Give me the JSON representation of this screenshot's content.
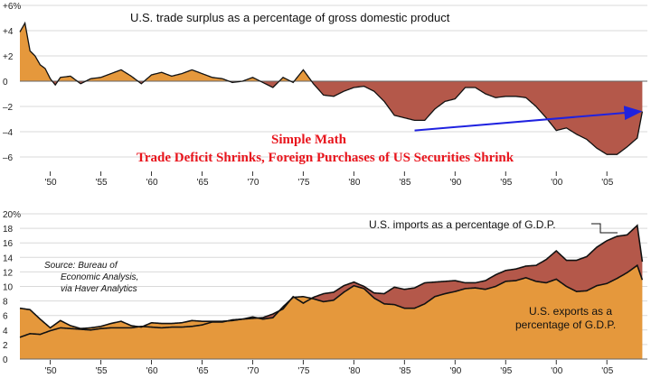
{
  "colors": {
    "positive_fill": "#e5983c",
    "negative_fill": "#b4584a",
    "exports_fill": "#e5983c",
    "gap_fill": "#b4584a",
    "line": "#111111",
    "arrow": "#1f22e0",
    "annotation": "#e8141c",
    "grid": "#d9d9d9"
  },
  "chart_data": [
    {
      "type": "area",
      "title": "U.S. trade surplus as a percentage of gross domestic product",
      "ylim": [
        -7,
        6
      ],
      "y_ticks": [
        {
          "value": 6,
          "label": "+6%"
        },
        {
          "value": 4,
          "label": "+4"
        },
        {
          "value": 2,
          "label": "+2"
        },
        {
          "value": 0,
          "label": "0"
        },
        {
          "value": -2,
          "label": "–2"
        },
        {
          "value": -4,
          "label": "–4"
        },
        {
          "value": -6,
          "label": "–6"
        }
      ],
      "x_ticks": [
        {
          "value": 1950,
          "label": "'50"
        },
        {
          "value": 1955,
          "label": "'55"
        },
        {
          "value": 1960,
          "label": "'60"
        },
        {
          "value": 1965,
          "label": "'65"
        },
        {
          "value": 1970,
          "label": "'70"
        },
        {
          "value": 1975,
          "label": "'75"
        },
        {
          "value": 1980,
          "label": "'80"
        },
        {
          "value": 1985,
          "label": "'85"
        },
        {
          "value": 1990,
          "label": "'90"
        },
        {
          "value": 1995,
          "label": "'95"
        },
        {
          "value": 2000,
          "label": "'00"
        },
        {
          "value": 2005,
          "label": "'05"
        }
      ],
      "xlim": [
        1947,
        2009
      ],
      "series": [
        {
          "name": "Trade surplus (% of GDP)",
          "x": [
            1947,
            1947.5,
            1948,
            1948.5,
            1949,
            1949.5,
            1950,
            1950.5,
            1951,
            1952,
            1953,
            1954,
            1955,
            1956,
            1957,
            1958,
            1959,
            1960,
            1961,
            1962,
            1963,
            1964,
            1965,
            1966,
            1967,
            1968,
            1969,
            1970,
            1971,
            1972,
            1973,
            1974,
            1975,
            1976,
            1977,
            1978,
            1979,
            1980,
            1981,
            1982,
            1983,
            1984,
            1985,
            1986,
            1987,
            1988,
            1989,
            1990,
            1991,
            1992,
            1993,
            1994,
            1995,
            1996,
            1997,
            1998,
            1999,
            2000,
            2001,
            2002,
            2003,
            2004,
            2005,
            2006,
            2007,
            2008,
            2008.5
          ],
          "values": [
            3.9,
            4.6,
            2.4,
            2.0,
            1.3,
            1.0,
            0.2,
            -0.3,
            0.3,
            0.4,
            -0.2,
            0.2,
            0.3,
            0.6,
            0.9,
            0.4,
            -0.2,
            0.5,
            0.7,
            0.4,
            0.6,
            0.9,
            0.6,
            0.3,
            0.2,
            -0.1,
            0.0,
            0.3,
            -0.1,
            -0.5,
            0.3,
            -0.1,
            0.9,
            -0.2,
            -1.1,
            -1.2,
            -0.8,
            -0.5,
            -0.4,
            -0.8,
            -1.6,
            -2.7,
            -2.9,
            -3.1,
            -3.1,
            -2.2,
            -1.6,
            -1.4,
            -0.5,
            -0.5,
            -1.0,
            -1.3,
            -1.2,
            -1.2,
            -1.3,
            -2.0,
            -2.9,
            -3.9,
            -3.7,
            -4.2,
            -4.6,
            -5.3,
            -5.8,
            -5.8,
            -5.2,
            -4.5,
            -2.4
          ]
        }
      ],
      "annotation": {
        "line1": "Simple Math",
        "line2": "Trade Deficit Shrinks, Foreign Purchases of US Securities Shrink",
        "arrow_from": [
          1986,
          -3.9
        ],
        "arrow_to": [
          2008.5,
          -2.4
        ]
      }
    },
    {
      "type": "area",
      "ylim": [
        0,
        20
      ],
      "y_ticks": [
        {
          "value": 20,
          "label": "20%"
        },
        {
          "value": 18,
          "label": "18"
        },
        {
          "value": 16,
          "label": "16"
        },
        {
          "value": 14,
          "label": "14"
        },
        {
          "value": 12,
          "label": "12"
        },
        {
          "value": 10,
          "label": "10"
        },
        {
          "value": 8,
          "label": "8"
        },
        {
          "value": 6,
          "label": "6"
        },
        {
          "value": 4,
          "label": "4"
        },
        {
          "value": 2,
          "label": "2"
        },
        {
          "value": 0,
          "label": "0"
        }
      ],
      "x_ticks": [
        {
          "value": 1950,
          "label": "'50"
        },
        {
          "value": 1955,
          "label": "'55"
        },
        {
          "value": 1960,
          "label": "'60"
        },
        {
          "value": 1965,
          "label": "'65"
        },
        {
          "value": 1970,
          "label": "'70"
        },
        {
          "value": 1975,
          "label": "'75"
        },
        {
          "value": 1980,
          "label": "'80"
        },
        {
          "value": 1985,
          "label": "'85"
        },
        {
          "value": 1990,
          "label": "'90"
        },
        {
          "value": 1995,
          "label": "'95"
        },
        {
          "value": 2000,
          "label": "'00"
        },
        {
          "value": 2005,
          "label": "'05"
        }
      ],
      "xlim": [
        1947,
        2009
      ],
      "series": [
        {
          "name": "U.S. imports as a percentage of G.D.P.",
          "x": [
            1947,
            1948,
            1949,
            1950,
            1951,
            1952,
            1953,
            1954,
            1955,
            1956,
            1957,
            1958,
            1959,
            1960,
            1961,
            1962,
            1963,
            1964,
            1965,
            1966,
            1967,
            1968,
            1969,
            1970,
            1971,
            1972,
            1973,
            1974,
            1975,
            1976,
            1977,
            1978,
            1979,
            1980,
            1981,
            1982,
            1983,
            1984,
            1985,
            1986,
            1987,
            1988,
            1989,
            1990,
            1991,
            1992,
            1993,
            1994,
            1995,
            1996,
            1997,
            1998,
            1999,
            2000,
            2001,
            2002,
            2003,
            2004,
            2005,
            2006,
            2007,
            2008,
            2008.5
          ],
          "values": [
            3.0,
            3.5,
            3.4,
            3.9,
            4.3,
            4.2,
            4.1,
            4.0,
            4.2,
            4.3,
            4.3,
            4.3,
            4.5,
            4.4,
            4.3,
            4.4,
            4.4,
            4.5,
            4.7,
            5.1,
            5.1,
            5.4,
            5.5,
            5.6,
            5.7,
            6.2,
            6.9,
            8.6,
            7.7,
            8.5,
            9.0,
            9.2,
            10.1,
            10.6,
            10.0,
            9.1,
            9.0,
            9.9,
            9.6,
            9.8,
            10.5,
            10.6,
            10.7,
            10.8,
            10.5,
            10.5,
            10.8,
            11.6,
            12.2,
            12.4,
            12.8,
            12.9,
            13.7,
            14.9,
            13.6,
            13.6,
            14.1,
            15.4,
            16.3,
            16.9,
            17.1,
            18.4,
            13.4
          ]
        },
        {
          "name": "U.S. exports as a percentage of G.D.P.",
          "x": [
            1947,
            1948,
            1949,
            1950,
            1951,
            1952,
            1953,
            1954,
            1955,
            1956,
            1957,
            1958,
            1959,
            1960,
            1961,
            1962,
            1963,
            1964,
            1965,
            1966,
            1967,
            1968,
            1969,
            1970,
            1971,
            1972,
            1973,
            1974,
            1975,
            1976,
            1977,
            1978,
            1979,
            1980,
            1981,
            1982,
            1983,
            1984,
            1985,
            1986,
            1987,
            1988,
            1989,
            1990,
            1991,
            1992,
            1993,
            1994,
            1995,
            1996,
            1997,
            1998,
            1999,
            2000,
            2001,
            2002,
            2003,
            2004,
            2005,
            2006,
            2007,
            2008,
            2008.5
          ],
          "values": [
            7.0,
            6.8,
            5.5,
            4.3,
            5.3,
            4.6,
            4.2,
            4.3,
            4.5,
            4.9,
            5.2,
            4.6,
            4.4,
            5.0,
            4.9,
            4.9,
            5.0,
            5.3,
            5.2,
            5.2,
            5.2,
            5.3,
            5.5,
            5.8,
            5.5,
            5.7,
            7.2,
            8.5,
            8.6,
            8.3,
            7.9,
            8.1,
            9.2,
            10.1,
            9.7,
            8.4,
            7.6,
            7.5,
            7.0,
            7.0,
            7.6,
            8.6,
            9.0,
            9.3,
            9.7,
            9.8,
            9.6,
            10.0,
            10.7,
            10.8,
            11.2,
            10.7,
            10.5,
            11.0,
            10.0,
            9.3,
            9.4,
            10.1,
            10.4,
            11.1,
            11.9,
            12.9,
            10.9
          ]
        }
      ],
      "labels": {
        "imports": "U.S. imports as a percentage of G.D.P.",
        "exports_line1": "U.S. exports as a",
        "exports_line2": "percentage of G.D.P.",
        "source_line1": "Source: Bureau of",
        "source_line2": "Economic Analysis,",
        "source_line3": "via Haver Analytics"
      }
    }
  ]
}
